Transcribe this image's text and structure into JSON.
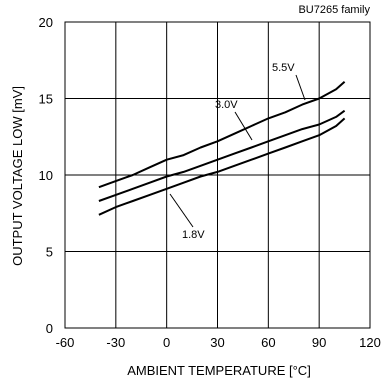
{
  "chart_data": {
    "type": "line",
    "title": "",
    "annotation_top_right": "BU7265 family",
    "xlabel": "AMBIENT TEMPERATURE [°C]",
    "ylabel": "OUTPUT VOLTAGE LOW [mV]",
    "xlim": [
      -60,
      120
    ],
    "ylim": [
      0,
      20
    ],
    "xticks": [
      "-60",
      "-30",
      "0",
      "30",
      "60",
      "90",
      "120"
    ],
    "yticks": [
      "0",
      "5",
      "10",
      "15",
      "20"
    ],
    "grid": true,
    "legend": "none",
    "series": [
      {
        "name": "5.5V",
        "x": [
          -40,
          -30,
          -20,
          -10,
          0,
          10,
          20,
          30,
          40,
          50,
          60,
          70,
          80,
          90,
          100,
          105
        ],
        "y": [
          9.2,
          9.6,
          10.0,
          10.5,
          11.0,
          11.3,
          11.8,
          12.2,
          12.7,
          13.2,
          13.7,
          14.1,
          14.6,
          15.0,
          15.6,
          16.1
        ]
      },
      {
        "name": "3.0V",
        "x": [
          -40,
          -30,
          -20,
          -10,
          0,
          10,
          20,
          30,
          40,
          50,
          60,
          70,
          80,
          90,
          100,
          105
        ],
        "y": [
          8.3,
          8.7,
          9.1,
          9.5,
          9.9,
          10.2,
          10.6,
          11.0,
          11.4,
          11.8,
          12.2,
          12.6,
          13.0,
          13.3,
          13.8,
          14.2
        ]
      },
      {
        "name": "1.8V",
        "x": [
          -40,
          -30,
          -20,
          -10,
          0,
          10,
          20,
          30,
          40,
          50,
          60,
          70,
          80,
          90,
          100,
          105
        ],
        "y": [
          7.4,
          7.9,
          8.3,
          8.7,
          9.1,
          9.5,
          9.9,
          10.2,
          10.6,
          11.0,
          11.4,
          11.8,
          12.2,
          12.6,
          13.2,
          13.7
        ]
      }
    ]
  }
}
